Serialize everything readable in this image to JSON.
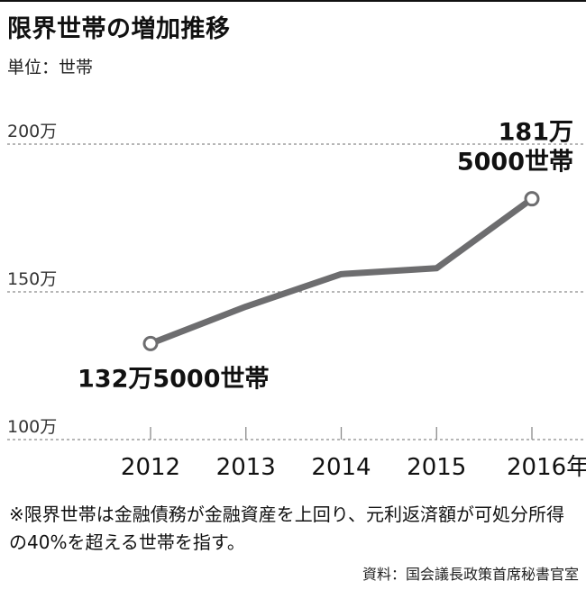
{
  "header": {
    "title": "限界世帯の増加推移",
    "unit": "単位：世帯"
  },
  "chart_data": {
    "type": "line",
    "title": "限界世帯の増加推移",
    "unit_label": "単位：世帯",
    "x": [
      2012,
      2013,
      2014,
      2015,
      2016
    ],
    "x_tick_labels": [
      "2012",
      "2013",
      "2014",
      "2015",
      "2016年"
    ],
    "series": [
      {
        "values": [
          1325000,
          1450000,
          1560000,
          1580000,
          1815000
        ]
      }
    ],
    "y_ticks": [
      1000000,
      1500000,
      2000000
    ],
    "y_tick_labels": [
      "100万",
      "150万",
      "200万"
    ],
    "ylim": [
      1000000,
      2000000
    ],
    "grid": "horizontal dashed",
    "annotations": [
      {
        "index": 0,
        "lines": [
          "132万5000世帯"
        ]
      },
      {
        "index": 4,
        "lines": [
          "181万",
          "5000世帯"
        ]
      }
    ],
    "colors": {
      "line": "#6d6d6f",
      "grid": "#8a8a8a",
      "text": "#111111"
    }
  },
  "footer": {
    "note": "※限界世帯は金融債務が金融資産を上回り、元利返済額が可処分所得の40%を超える世帯を指す。",
    "source": "資料：国会議長政策首席秘書官室"
  }
}
